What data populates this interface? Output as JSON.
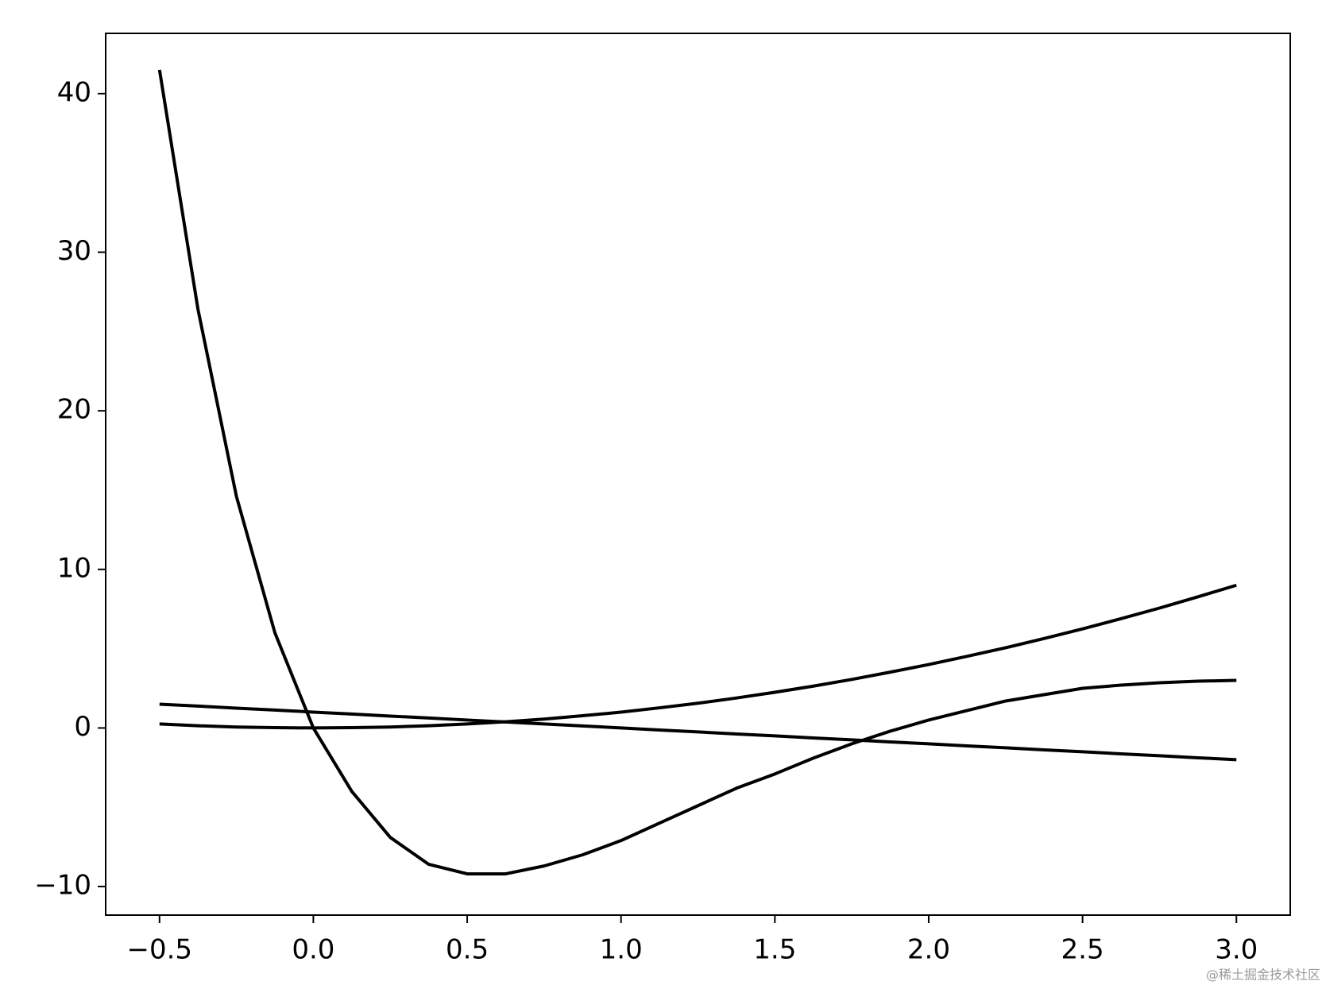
{
  "chart_data": {
    "type": "line",
    "x": [
      -0.5,
      -0.375,
      -0.25,
      -0.125,
      0,
      0.125,
      0.25,
      0.375,
      0.5,
      0.625,
      0.75,
      0.875,
      1.0,
      1.125,
      1.25,
      1.375,
      1.5,
      1.625,
      1.75,
      1.875,
      2.0,
      2.125,
      2.25,
      2.375,
      2.5,
      2.625,
      2.75,
      2.875,
      3.0
    ],
    "series": [
      {
        "color": "#000000",
        "values": [
          41.5,
          26.4,
          14.6,
          6.0,
          0,
          -4.0,
          -6.9,
          -8.6,
          -9.2,
          -9.2,
          -8.7,
          -8.0,
          -7.1,
          -6.0,
          -4.9,
          -3.8,
          -2.9,
          -1.9,
          -1.0,
          -0.2,
          0.5,
          1.1,
          1.7,
          2.1,
          2.5,
          2.7,
          2.85,
          2.95,
          3.0
        ]
      },
      {
        "color": "#000000",
        "values": [
          0.25,
          0.14,
          0.06,
          0.02,
          0,
          0.02,
          0.06,
          0.14,
          0.25,
          0.39,
          0.56,
          0.77,
          1,
          1.27,
          1.56,
          1.89,
          2.25,
          2.64,
          3.06,
          3.52,
          4,
          4.52,
          5.06,
          5.64,
          6.25,
          6.89,
          7.56,
          8.27,
          9
        ]
      },
      {
        "color": "#000000",
        "values": [
          1.5,
          1.38,
          1.25,
          1.13,
          1,
          0.88,
          0.75,
          0.63,
          0.5,
          0.38,
          0.25,
          0.13,
          0,
          -0.13,
          -0.25,
          -0.38,
          -0.5,
          -0.63,
          -0.75,
          -0.88,
          -1,
          -1.13,
          -1.25,
          -1.38,
          -1.5,
          -1.63,
          -1.75,
          -1.88,
          -2
        ]
      }
    ],
    "xlim": [
      -0.675,
      3.175
    ],
    "ylim": [
      -11.8,
      43.8
    ],
    "xticks": [
      {
        "value": -0.5,
        "label": "−0.5"
      },
      {
        "value": 0,
        "label": "0.0"
      },
      0.5,
      {
        "value": 1,
        "label": "1.0"
      },
      1.5,
      {
        "value": 2,
        "label": "2.0"
      },
      2.5,
      {
        "value": 3,
        "label": "3.0"
      }
    ],
    "yticks": [
      {
        "value": -10,
        "label": "−10"
      },
      0,
      10,
      20,
      30,
      40
    ],
    "grid": false
  },
  "watermark": "@稀土掘金技术社区"
}
